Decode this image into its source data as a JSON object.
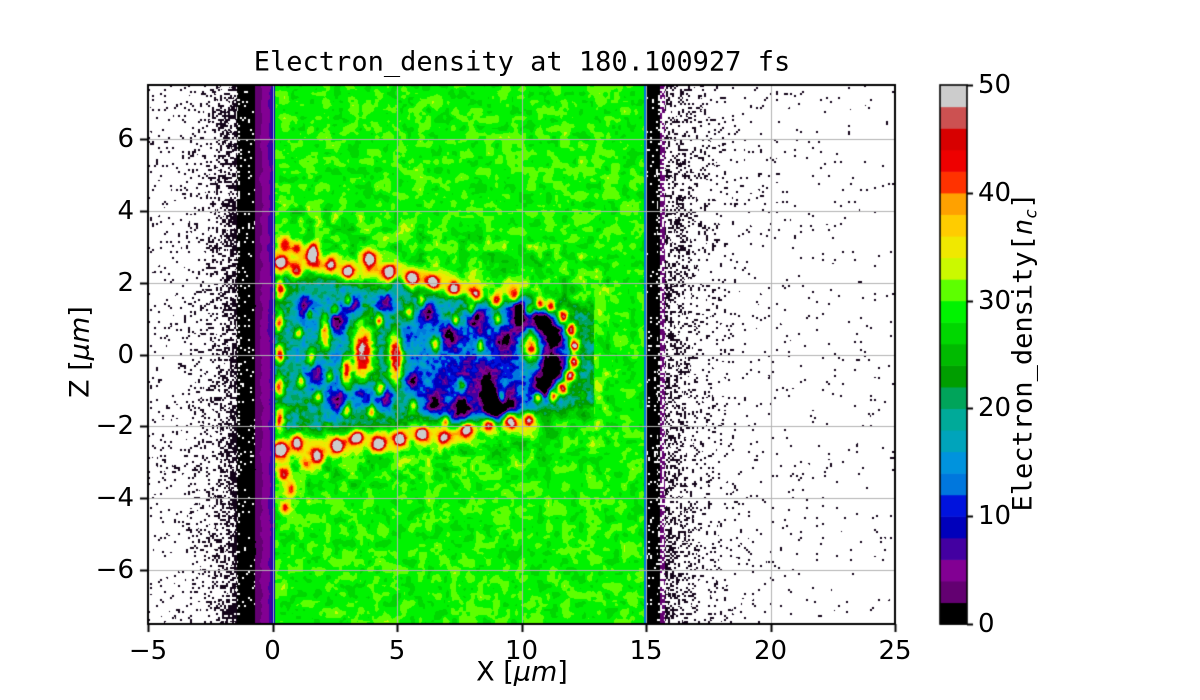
{
  "title": {
    "text": "Electron_density at 180.100927 fs"
  },
  "x_axis": {
    "label_prefix": "X [",
    "label_unit": "μm",
    "label_suffix": "]",
    "range": [
      -5,
      25
    ],
    "ticks": [
      {
        "value": -5,
        "label": "−5"
      },
      {
        "value": 0,
        "label": "0"
      },
      {
        "value": 5,
        "label": "5"
      },
      {
        "value": 10,
        "label": "10"
      },
      {
        "value": 15,
        "label": "15"
      },
      {
        "value": 20,
        "label": "20"
      },
      {
        "value": 25,
        "label": "25"
      }
    ]
  },
  "y_axis": {
    "label_prefix": "Z [",
    "label_unit": "μm",
    "label_suffix": "]",
    "range": [
      -7.5,
      7.5
    ],
    "ticks": [
      {
        "value": 6,
        "label": "6"
      },
      {
        "value": 4,
        "label": "4"
      },
      {
        "value": 2,
        "label": "2"
      },
      {
        "value": 0,
        "label": "0"
      },
      {
        "value": -2,
        "label": "−2"
      },
      {
        "value": -4,
        "label": "−4"
      },
      {
        "value": -6,
        "label": "−6"
      }
    ]
  },
  "colorbar": {
    "label_main": "Electron_density[",
    "label_var": "n",
    "label_sub": "c",
    "label_suffix": "]",
    "range": [
      0,
      50
    ],
    "levels": 25,
    "ticks": [
      {
        "value": 0,
        "label": "0"
      },
      {
        "value": 10,
        "label": "10"
      },
      {
        "value": 20,
        "label": "20"
      },
      {
        "value": 30,
        "label": "30"
      },
      {
        "value": 40,
        "label": "40"
      },
      {
        "value": 50,
        "label": "50"
      }
    ]
  },
  "chart_data": {
    "type": "heatmap",
    "title": "Electron_density at 180.100927 fs",
    "xlabel": "X [μm]",
    "ylabel": "Z [μm]",
    "colorbar_label": "Electron_density[n_c]",
    "xlim": [
      -5,
      25
    ],
    "ylim": [
      -7.5,
      7.5
    ],
    "clim": [
      0,
      50
    ],
    "levels": 25,
    "grid": true,
    "grid_color": "#b2b2b2",
    "spine_color": "#000000",
    "background_color": "#ffffff",
    "speckle_color": [
      18,
      2,
      24
    ],
    "colormap": "nipy_spectral",
    "colormap_stops": [
      [
        0,
        0,
        0
      ],
      [
        0.4667,
        0,
        0.5333
      ],
      [
        0.5333,
        0,
        0.6
      ],
      [
        0,
        0,
        0.6667
      ],
      [
        0,
        0,
        0.8667
      ],
      [
        0,
        0.4667,
        0.8667
      ],
      [
        0,
        0.6,
        0.8667
      ],
      [
        0,
        0.6667,
        0.6667
      ],
      [
        0,
        0.6667,
        0.5333
      ],
      [
        0,
        0.6,
        0
      ],
      [
        0,
        0.7333,
        0
      ],
      [
        0,
        0.8667,
        0
      ],
      [
        0,
        1,
        0
      ],
      [
        0.7333,
        1,
        0
      ],
      [
        0.9333,
        0.9333,
        0
      ],
      [
        1,
        0.8,
        0
      ],
      [
        1,
        0.6,
        0
      ],
      [
        1,
        0,
        0
      ],
      [
        0.8667,
        0,
        0
      ],
      [
        0.8,
        0,
        0
      ],
      [
        0.8,
        0.8,
        0.8
      ]
    ],
    "regions": {
      "vacuum_left_end": -1.42,
      "black_band_left": [
        -1.42,
        -0.72
      ],
      "purple_ramp": {
        "x0": -0.72,
        "x1": 0.0,
        "v0": 2.2,
        "v1": 6.8
      },
      "blue_edge_left": {
        "x0": 0.0,
        "x1": 0.1,
        "v": 8.5
      },
      "plasma_slab": {
        "x0": 0.1,
        "x1": 14.92,
        "base_density": 29.3,
        "noise_amp": 3.3,
        "heated_noise_amp": 4.9
      },
      "blue_edge_right": {
        "x0": 14.92,
        "x1": 15.02,
        "v": 13
      },
      "black_band_right": [
        15.02,
        15.56
      ],
      "purple_fringe_right": [
        15.56,
        15.78
      ],
      "speckle_left": {
        "p_base": 0.04,
        "p_peak": 0.62,
        "falloff": 0.75
      },
      "speckle_right": {
        "p_base": 0.015,
        "p_peak": 0.5,
        "falloff": 1.15
      }
    },
    "channel": {
      "x_end": 12.9,
      "top_rim": {
        "z0": 2.62,
        "slope": -0.085
      },
      "bottom_rim": {
        "z0": -2.58,
        "slope": 0.06
      },
      "interior_density": 23,
      "interior_noise": 5,
      "rim_amp": 9,
      "heated_halfwidth": {
        "z0": 4.3,
        "slope": -0.12
      }
    },
    "blobs": [
      [
        3.62,
        0.05,
        0.5,
        0.85,
        32
      ],
      [
        4.95,
        -0.05,
        0.34,
        0.8,
        32
      ],
      [
        10.42,
        0.18,
        0.42,
        0.52,
        34
      ],
      [
        2.12,
        0.6,
        0.25,
        0.5,
        26
      ],
      [
        2.95,
        -0.5,
        0.22,
        0.45,
        25
      ],
      [
        1.55,
        -0.12,
        0.22,
        0.38,
        23
      ],
      [
        0.35,
        2.55,
        0.26,
        0.22,
        24
      ],
      [
        0.95,
        2.3,
        0.24,
        0.2,
        20
      ],
      [
        1.6,
        2.75,
        0.26,
        0.22,
        25
      ],
      [
        2.35,
        2.5,
        0.24,
        0.2,
        21
      ],
      [
        3.05,
        2.3,
        0.26,
        0.2,
        24
      ],
      [
        3.9,
        2.65,
        0.28,
        0.22,
        26
      ],
      [
        4.7,
        2.3,
        0.24,
        0.2,
        22
      ],
      [
        5.6,
        2.1,
        0.26,
        0.2,
        24
      ],
      [
        6.45,
        2.0,
        0.26,
        0.2,
        21
      ],
      [
        7.3,
        1.8,
        0.26,
        0.2,
        24
      ],
      [
        8.15,
        1.65,
        0.28,
        0.2,
        22
      ],
      [
        9.0,
        1.5,
        0.26,
        0.2,
        24
      ],
      [
        9.7,
        1.6,
        0.24,
        0.2,
        20
      ],
      [
        0.35,
        -2.65,
        0.26,
        0.22,
        25
      ],
      [
        1.0,
        -2.45,
        0.24,
        0.2,
        21
      ],
      [
        1.8,
        -2.85,
        0.28,
        0.22,
        25
      ],
      [
        2.6,
        -2.55,
        0.24,
        0.2,
        22
      ],
      [
        3.4,
        -2.3,
        0.26,
        0.2,
        24
      ],
      [
        4.25,
        -2.5,
        0.28,
        0.22,
        26
      ],
      [
        5.1,
        -2.35,
        0.24,
        0.2,
        21
      ],
      [
        6.0,
        -2.2,
        0.26,
        0.2,
        24
      ],
      [
        6.9,
        -2.35,
        0.26,
        0.2,
        22
      ],
      [
        7.8,
        -2.1,
        0.28,
        0.22,
        25
      ],
      [
        8.7,
        -1.95,
        0.26,
        0.2,
        22
      ],
      [
        9.55,
        -1.8,
        0.28,
        0.22,
        26
      ],
      [
        10.3,
        -1.8,
        0.24,
        0.2,
        22
      ],
      [
        0.3,
        1.8,
        0.2,
        0.3,
        22
      ],
      [
        0.25,
        0.9,
        0.2,
        0.3,
        20
      ],
      [
        0.3,
        0.0,
        0.2,
        0.3,
        22
      ],
      [
        0.28,
        -0.9,
        0.2,
        0.3,
        20
      ],
      [
        0.3,
        -1.8,
        0.2,
        0.3,
        22
      ],
      [
        0.5,
        3.1,
        0.25,
        0.25,
        16
      ],
      [
        0.95,
        2.95,
        0.25,
        0.2,
        14
      ],
      [
        1.7,
        3.0,
        0.22,
        0.18,
        12
      ],
      [
        0.45,
        -3.3,
        0.25,
        0.22,
        16
      ],
      [
        0.75,
        -3.75,
        0.22,
        0.22,
        14
      ],
      [
        0.5,
        -4.25,
        0.2,
        0.2,
        13
      ],
      [
        1.35,
        -3.05,
        0.22,
        0.18,
        12
      ],
      [
        1.05,
        0.6,
        0.18,
        0.18,
        20
      ],
      [
        1.15,
        -0.75,
        0.18,
        0.18,
        20
      ],
      [
        1.85,
        -1.2,
        0.18,
        0.18,
        18
      ],
      [
        2.5,
        1.25,
        0.18,
        0.18,
        20
      ],
      [
        3.05,
        1.5,
        0.16,
        0.16,
        18
      ],
      [
        3.0,
        -1.55,
        0.18,
        0.18,
        19
      ],
      [
        4.3,
        0.95,
        0.18,
        0.2,
        21
      ],
      [
        4.35,
        -0.95,
        0.18,
        0.2,
        21
      ],
      [
        5.5,
        1.15,
        0.18,
        0.18,
        19
      ],
      [
        5.65,
        -1.45,
        0.18,
        0.18,
        18
      ],
      [
        6.55,
        0.3,
        0.18,
        0.22,
        20
      ],
      [
        7.35,
        0.95,
        0.16,
        0.18,
        18
      ],
      [
        7.6,
        -0.85,
        0.16,
        0.18,
        18
      ],
      [
        8.35,
        0.25,
        0.16,
        0.2,
        19
      ],
      [
        9.05,
        0.95,
        0.16,
        0.18,
        18
      ],
      [
        9.2,
        -1.15,
        0.16,
        0.18,
        17
      ],
      [
        6.95,
        -1.85,
        0.16,
        0.16,
        17
      ],
      [
        6.0,
        1.5,
        0.16,
        0.16,
        16
      ],
      [
        8.0,
        1.3,
        0.16,
        0.16,
        16
      ],
      [
        4.0,
        -1.6,
        0.16,
        0.16,
        17
      ],
      [
        2.3,
        -0.6,
        0.16,
        0.16,
        16
      ],
      [
        1.5,
        1.15,
        0.16,
        0.16,
        16
      ],
      [
        1.35,
        1.35,
        0.38,
        0.38,
        -15
      ],
      [
        1.65,
        -0.45,
        0.36,
        0.34,
        -14
      ],
      [
        2.55,
        0.95,
        0.38,
        0.36,
        -15
      ],
      [
        2.65,
        -1.3,
        0.38,
        0.34,
        -15
      ],
      [
        3.3,
        1.35,
        0.36,
        0.34,
        -14
      ],
      [
        3.6,
        -1.15,
        0.36,
        0.34,
        -14
      ],
      [
        4.55,
        1.4,
        0.38,
        0.36,
        -15
      ],
      [
        4.6,
        -1.25,
        0.36,
        0.34,
        -14
      ],
      [
        5.3,
        0.55,
        0.34,
        0.32,
        -13
      ],
      [
        5.65,
        -0.7,
        0.34,
        0.32,
        -13
      ],
      [
        6.25,
        1.15,
        0.38,
        0.36,
        -15
      ],
      [
        6.5,
        -1.35,
        0.38,
        0.36,
        -15
      ],
      [
        7.15,
        0.55,
        0.36,
        0.34,
        -14
      ],
      [
        7.55,
        -1.55,
        0.4,
        0.36,
        -16
      ],
      [
        8.25,
        1.0,
        0.38,
        0.36,
        -15
      ],
      [
        8.65,
        -0.95,
        0.36,
        0.34,
        -14
      ],
      [
        9.35,
        0.35,
        0.36,
        0.34,
        -14
      ],
      [
        9.55,
        -1.4,
        0.38,
        0.34,
        -15
      ],
      [
        5.05,
        1.95,
        0.3,
        0.26,
        -11
      ],
      [
        9.95,
        0.9,
        0.34,
        0.3,
        -13
      ],
      [
        8.95,
        -1.5,
        0.4,
        0.36,
        -21
      ],
      [
        9.9,
        1.35,
        0.42,
        0.36,
        -22
      ],
      [
        10.75,
        0.95,
        0.38,
        0.34,
        -20
      ],
      [
        10.9,
        -0.95,
        0.4,
        0.34,
        -21
      ],
      [
        11.3,
        -0.4,
        0.34,
        0.3,
        -19
      ],
      [
        11.25,
        0.55,
        0.32,
        0.3,
        -18
      ],
      [
        10.95,
        0.05,
        1.05,
        1.15,
        -14
      ],
      [
        11.18,
        1.32,
        0.22,
        0.2,
        30
      ],
      [
        11.67,
        1.06,
        0.22,
        0.2,
        32
      ],
      [
        11.98,
        0.68,
        0.22,
        0.2,
        32
      ],
      [
        12.12,
        0.26,
        0.22,
        0.2,
        33
      ],
      [
        12.1,
        -0.19,
        0.22,
        0.2,
        32
      ],
      [
        11.94,
        -0.6,
        0.22,
        0.2,
        32
      ],
      [
        11.64,
        -0.93,
        0.22,
        0.2,
        31
      ],
      [
        11.25,
        -1.14,
        0.22,
        0.2,
        30
      ],
      [
        10.74,
        1.36,
        0.22,
        0.2,
        28
      ],
      [
        10.31,
        1.24,
        0.2,
        0.18,
        24
      ],
      [
        10.67,
        -1.19,
        0.2,
        0.18,
        24
      ],
      [
        5.6,
        0.0,
        4.6,
        1.6,
        -6.5
      ],
      [
        1.9,
        0.0,
        1.9,
        2.3,
        -5
      ],
      [
        9.3,
        0.0,
        2.4,
        1.8,
        -7
      ],
      [
        7.2,
        -0.9,
        1.6,
        1.1,
        -5
      ],
      [
        8.6,
        -1.3,
        1.3,
        0.9,
        -6
      ]
    ]
  }
}
